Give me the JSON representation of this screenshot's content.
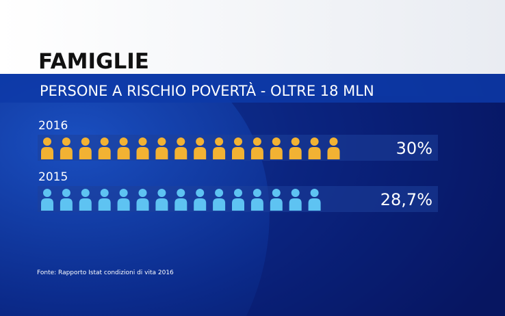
{
  "chart_data": {
    "type": "pictogram",
    "title": "FAMIGLIE",
    "subtitle": "PERSONE A RISCHIO POVERTÀ - OLTRE 18 MLN",
    "source": "Fonte: Rapporto Istat condizioni di vita 2016",
    "categories": [
      "2016",
      "2015"
    ],
    "values": [
      30,
      28.7
    ],
    "value_labels": [
      "30%",
      "28,7%"
    ],
    "colors": [
      "#f2b233",
      "#5ec3f2"
    ]
  }
}
